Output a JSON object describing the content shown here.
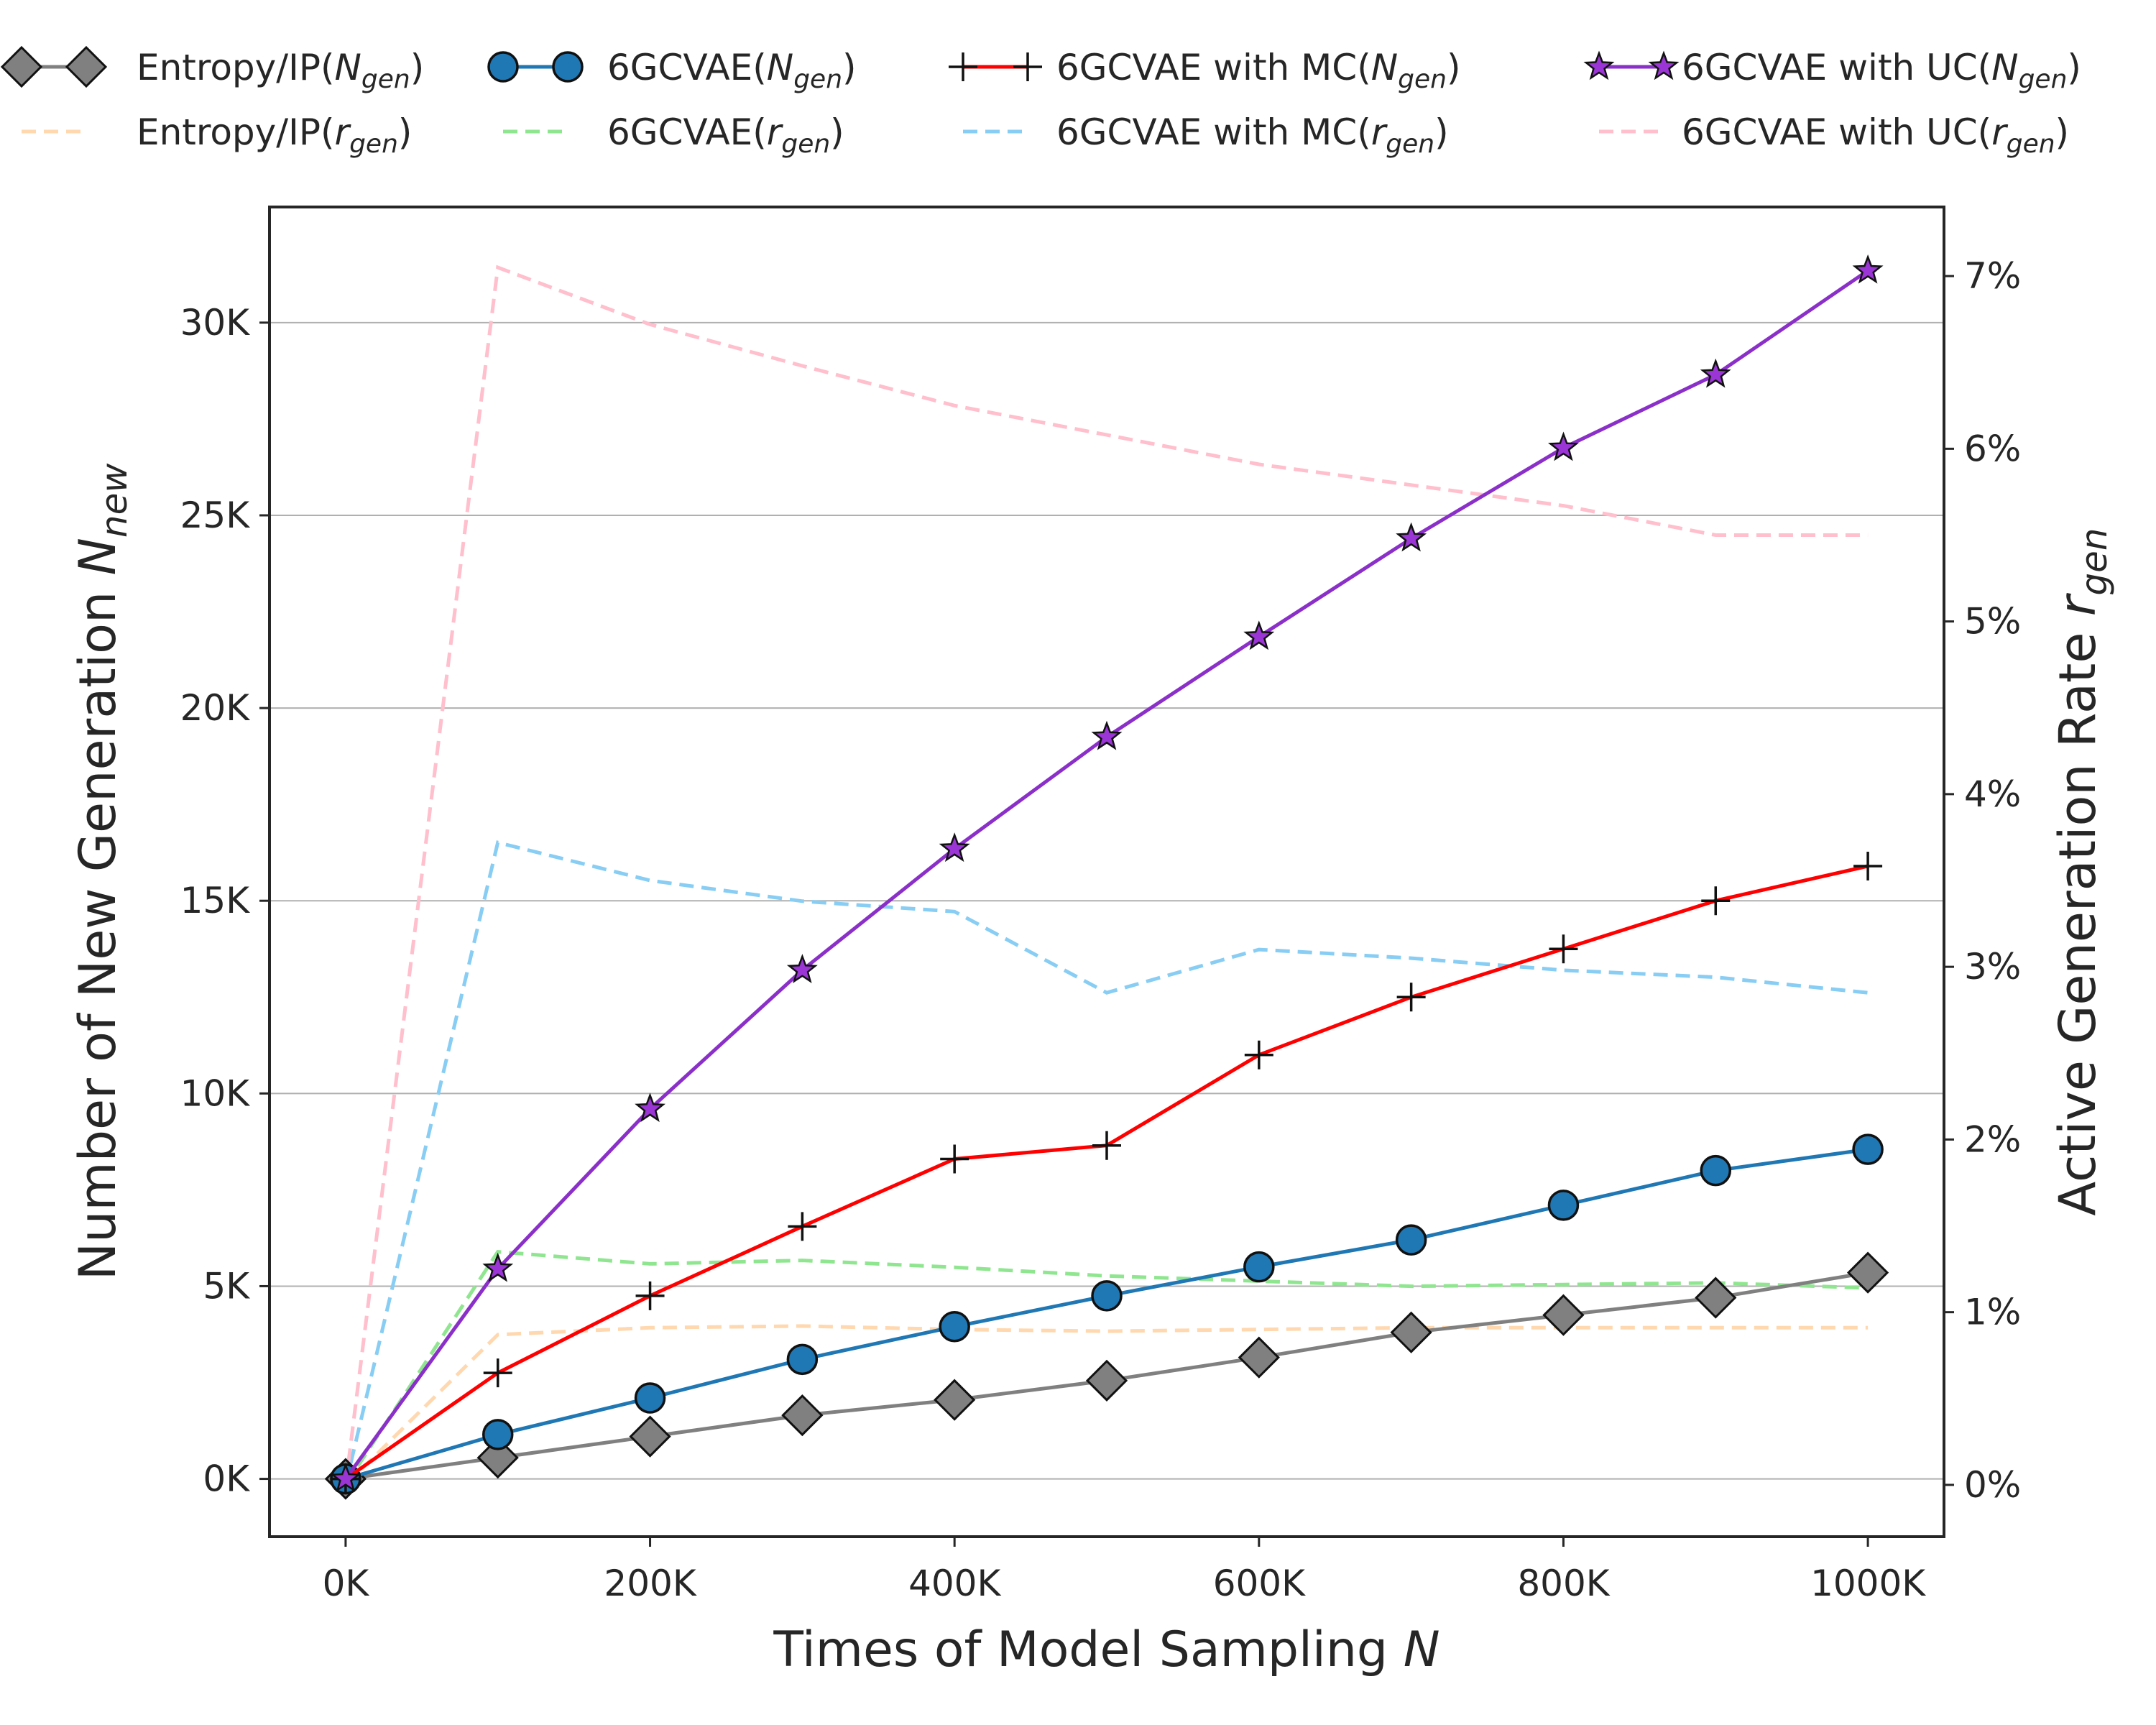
{
  "chart_data": {
    "type": "line",
    "xlabel": "Times of Model Sampling",
    "xlabel_var": "N",
    "ylabel_left": "Number of New Generation",
    "ylabel_left_var": "N",
    "ylabel_left_sub": "new",
    "ylabel_right": "Active Generation Rate",
    "ylabel_right_var": "r",
    "ylabel_right_sub": "gen",
    "x": [
      0,
      100000,
      200000,
      300000,
      400000,
      500000,
      600000,
      700000,
      800000,
      900000,
      1000000
    ],
    "xlim": [
      -50000,
      1050000
    ],
    "ylim_left": [
      -1500,
      33000
    ],
    "ylim_right": [
      -0.3,
      7.4
    ],
    "x_ticks": [
      0,
      200000,
      400000,
      600000,
      800000,
      1000000
    ],
    "x_tick_labels": [
      "0K",
      "200K",
      "400K",
      "600K",
      "800K",
      "1000K"
    ],
    "y_left_ticks": [
      0,
      5000,
      10000,
      15000,
      20000,
      25000,
      30000
    ],
    "y_left_tick_labels": [
      "0K",
      "5K",
      "10K",
      "15K",
      "20K",
      "25K",
      "30K"
    ],
    "y_right_ticks": [
      0,
      1,
      2,
      3,
      4,
      5,
      6,
      7
    ],
    "y_right_tick_labels": [
      "0%",
      "1%",
      "2%",
      "3%",
      "4%",
      "5%",
      "6%",
      "7%"
    ],
    "grid": "horizontal",
    "legend_position": "top",
    "series_left": [
      {
        "name": "Entropy/IP",
        "sub": "gen",
        "var": "N",
        "color": "#808080",
        "marker": "diamond",
        "marker_fill": "#808080",
        "values": [
          0,
          550,
          1100,
          1650,
          2050,
          2550,
          3150,
          3800,
          4250,
          4700,
          5350
        ]
      },
      {
        "name": "6GCVAE",
        "sub": "gen",
        "var": "N",
        "color": "#1f77b4",
        "marker": "circle",
        "marker_fill": "#1f77b4",
        "values": [
          0,
          1150,
          2100,
          3100,
          3950,
          4750,
          5500,
          6200,
          7100,
          8000,
          8550
        ]
      },
      {
        "name": "6GCVAE with MC",
        "sub": "gen",
        "var": "N",
        "color": "#ff0000",
        "marker": "plus",
        "marker_fill": "#000000",
        "values": [
          0,
          2750,
          4750,
          6550,
          8300,
          8650,
          11000,
          12500,
          13750,
          15000,
          15900
        ]
      },
      {
        "name": "6GCVAE with UC",
        "sub": "gen",
        "var": "N",
        "color": "#8b2fc9",
        "marker": "star",
        "marker_fill": "#9b35d6",
        "values": [
          0,
          5450,
          9600,
          13200,
          16350,
          19250,
          21850,
          24400,
          26750,
          28650,
          31350
        ]
      }
    ],
    "series_right": [
      {
        "name": "Entropy/IP",
        "sub": "gen",
        "var": "r",
        "color": "#ffd8b0",
        "values": [
          0,
          0.87,
          0.91,
          0.92,
          0.9,
          0.89,
          0.9,
          0.91,
          0.91,
          0.91,
          0.91
        ]
      },
      {
        "name": "6GCVAE",
        "sub": "gen",
        "var": "r",
        "color": "#90e690",
        "values": [
          0,
          1.35,
          1.28,
          1.3,
          1.26,
          1.21,
          1.18,
          1.15,
          1.16,
          1.17,
          1.14
        ]
      },
      {
        "name": "6GCVAE with MC",
        "sub": "gen",
        "var": "r",
        "color": "#88cdf3",
        "values": [
          0,
          3.72,
          3.5,
          3.38,
          3.32,
          2.85,
          3.1,
          3.05,
          2.98,
          2.94,
          2.85
        ]
      },
      {
        "name": "6GCVAE with UC",
        "sub": "gen",
        "var": "r",
        "color": "#ffbfcc",
        "values": [
          0,
          7.05,
          6.72,
          6.48,
          6.25,
          6.08,
          5.91,
          5.79,
          5.67,
          5.5,
          5.5
        ]
      }
    ]
  }
}
